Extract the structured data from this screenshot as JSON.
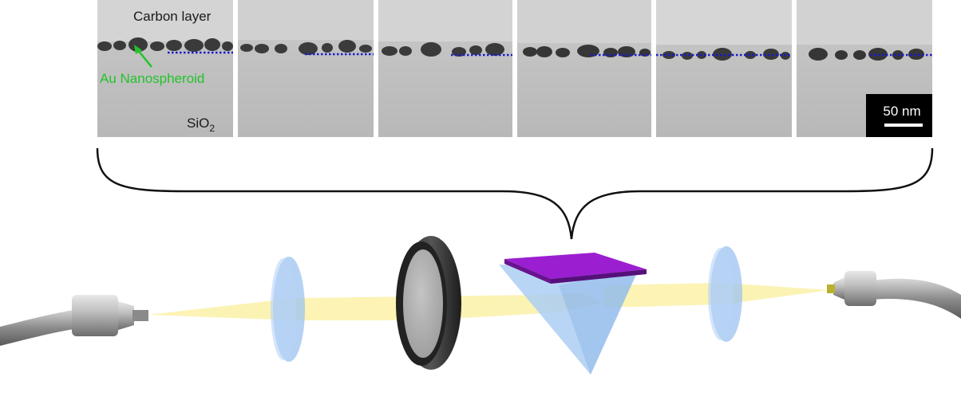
{
  "labels": {
    "carbon_layer": "Carbon layer",
    "au_nanospheroid": "Au Nanospheroid",
    "substrate_main": "SiO",
    "substrate_sub": "2",
    "scale_bar": "50 nm"
  },
  "colors": {
    "annotation_green": "#22c32a",
    "dotted_line": "#1a1acc",
    "beam": "#fbf1a8",
    "optic": "#9cc3f0",
    "sample": "#8a16b5",
    "fiber": "#7d7d7d"
  },
  "icons": {
    "left_fiber": "fiber-connector-icon",
    "right_fiber": "fiber-connector-icon",
    "lens": "lens-icon",
    "filter": "filter-wheel-icon",
    "prism": "prism-icon"
  }
}
